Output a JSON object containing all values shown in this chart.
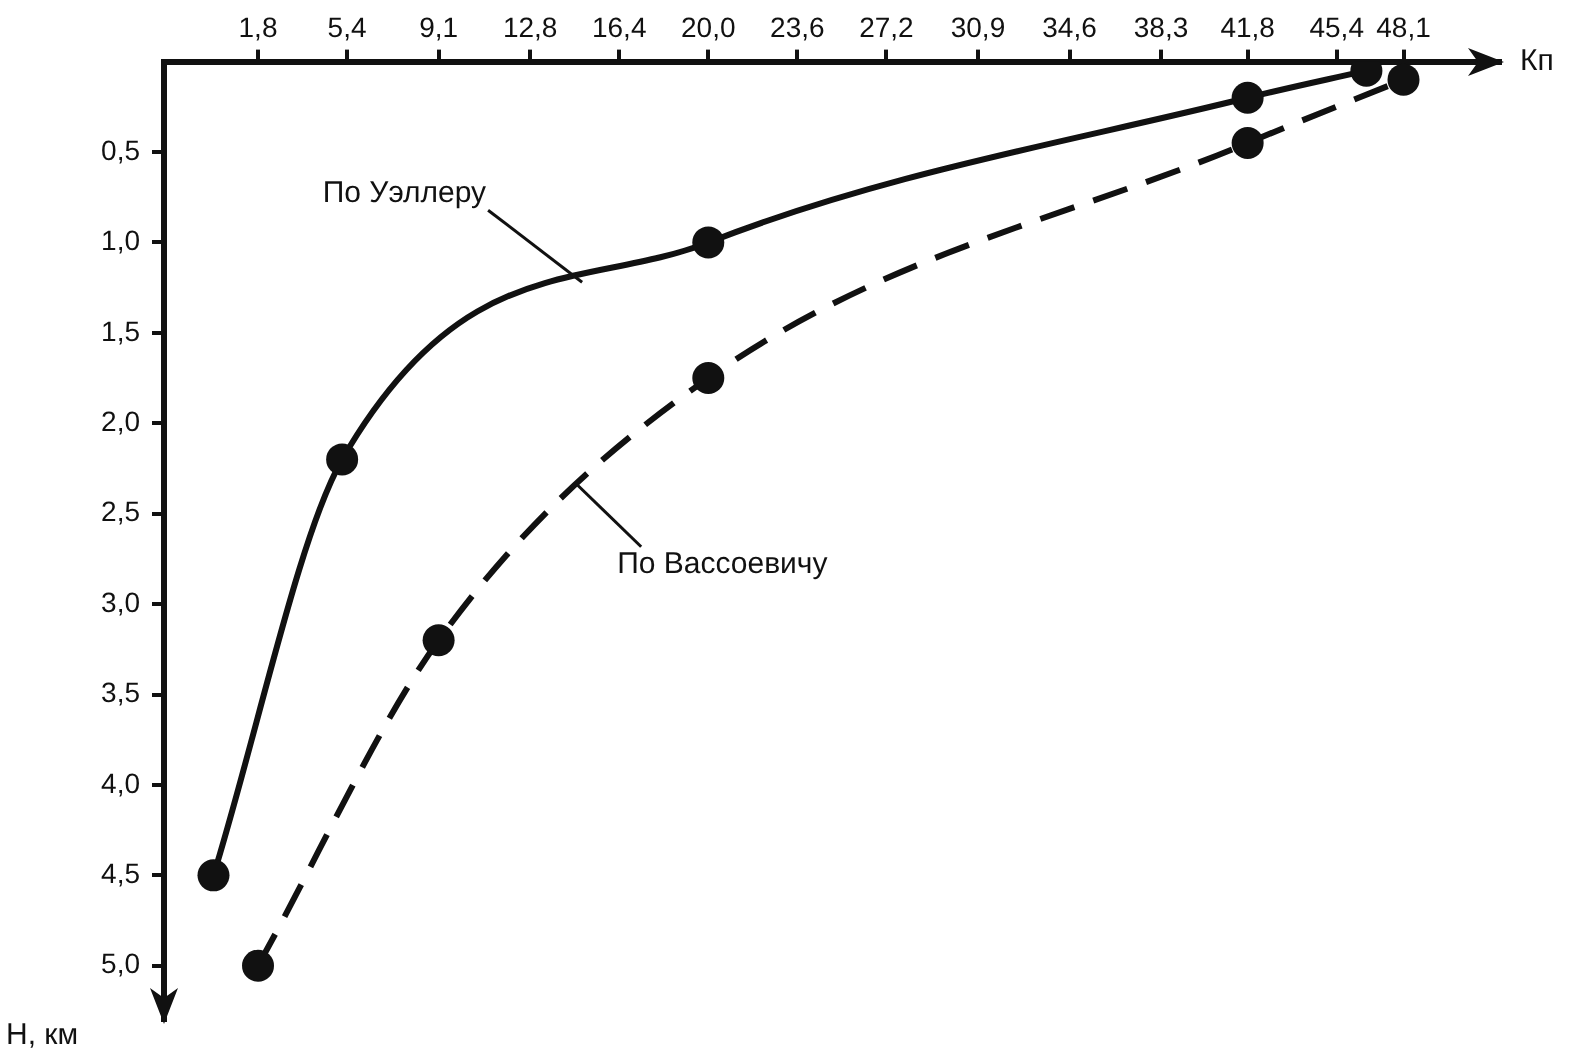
{
  "chart_data": {
    "type": "line",
    "xlabel": "Кп",
    "ylabel": "H, км",
    "xlim": [
      -2,
      52
    ],
    "xticks": [
      {
        "value": 1.8,
        "label": "1,8"
      },
      {
        "value": 5.4,
        "label": "5,4"
      },
      {
        "value": 9.1,
        "label": "9,1"
      },
      {
        "value": 12.8,
        "label": "12,8"
      },
      {
        "value": 16.4,
        "label": "16,4"
      },
      {
        "value": 20.0,
        "label": "20,0"
      },
      {
        "value": 23.6,
        "label": "23,6"
      },
      {
        "value": 27.2,
        "label": "27,2"
      },
      {
        "value": 30.9,
        "label": "30,9"
      },
      {
        "value": 34.6,
        "label": "34,6"
      },
      {
        "value": 38.3,
        "label": "38,3"
      },
      {
        "value": 41.8,
        "label": "41,8"
      },
      {
        "value": 45.4,
        "label": "45,4"
      },
      {
        "value": 48.1,
        "label": "48,1"
      }
    ],
    "ylim": [
      5.3,
      0
    ],
    "yticks": [
      {
        "value": 0.5,
        "label": "0,5"
      },
      {
        "value": 1.0,
        "label": "1,0"
      },
      {
        "value": 1.5,
        "label": "1,5"
      },
      {
        "value": 2.0,
        "label": "2,0"
      },
      {
        "value": 2.5,
        "label": "2,5"
      },
      {
        "value": 3.0,
        "label": "3,0"
      },
      {
        "value": 3.5,
        "label": "3,5"
      },
      {
        "value": 4.0,
        "label": "4,0"
      },
      {
        "value": 4.5,
        "label": "4,5"
      },
      {
        "value": 5.0,
        "label": "5,0"
      }
    ],
    "grid": false,
    "marker": "circle",
    "series": [
      {
        "color": "#111111",
        "line_style": "solid",
        "x": [
          0,
          5.2,
          20.0,
          41.8,
          46.6
        ],
        "values": [
          4.5,
          2.2,
          1.0,
          0.2,
          0.05
        ]
      },
      {
        "color": "#111111",
        "line_style": "dashed",
        "x": [
          1.8,
          9.1,
          20.0,
          41.8,
          48.1
        ],
        "values": [
          5.0,
          3.2,
          1.75,
          0.45,
          0.1
        ]
      }
    ],
    "annotations": [
      {
        "text": "По Уэллеру",
        "x": 14.9,
        "y": 1.22
      },
      {
        "text": "По Вассоевичу",
        "x": 14.7,
        "y": 2.34
      }
    ]
  }
}
